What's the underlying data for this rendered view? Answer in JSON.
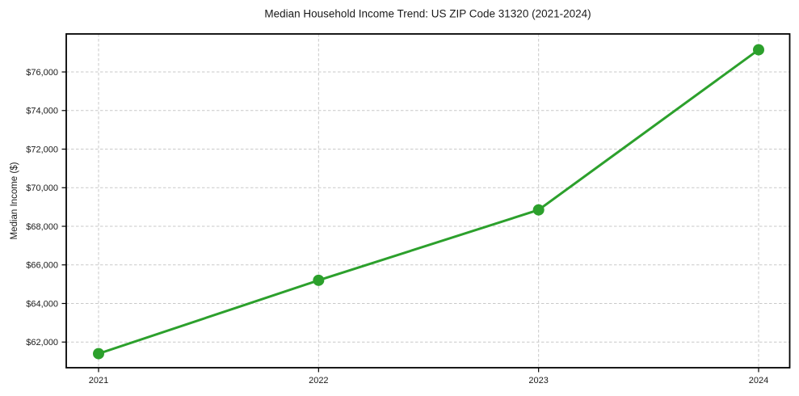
{
  "chart_data": {
    "type": "line",
    "title": "Median Household Income Trend: US ZIP Code 31320 (2021-2024)",
    "xlabel": "",
    "ylabel": "Median Income ($)",
    "categories": [
      "2021",
      "2022",
      "2023",
      "2024"
    ],
    "series": [
      {
        "values": [
          61400,
          65200,
          68850,
          77150
        ],
        "color": "#2ca02c",
        "marker": "circle",
        "line_width": 3,
        "marker_radius": 7
      }
    ],
    "yticks": [
      62000,
      64000,
      66000,
      68000,
      70000,
      72000,
      74000,
      76000
    ],
    "ytick_labels": [
      "$62,000",
      "$64,000",
      "$66,000",
      "$68,000",
      "$70,000",
      "$72,000",
      "$74,000",
      "$76,000"
    ],
    "ylim": [
      60670,
      77970
    ],
    "grid": true,
    "grid_color": "#c9c9c9",
    "grid_style": "dashed",
    "background": "#ffffff",
    "legend": "none"
  }
}
